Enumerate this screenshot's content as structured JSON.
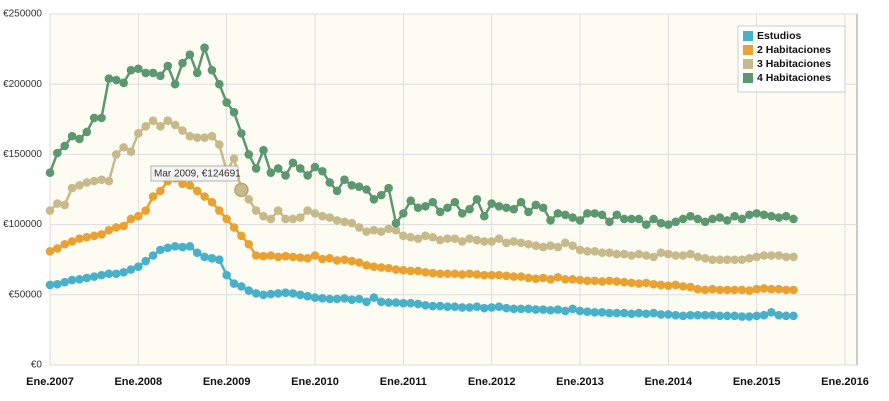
{
  "chart_data": {
    "type": "line",
    "categories": [
      "Ene.2007",
      null,
      null,
      null,
      null,
      null,
      null,
      null,
      null,
      null,
      null,
      null,
      "Ene.2008",
      null,
      null,
      null,
      null,
      null,
      null,
      null,
      null,
      null,
      null,
      null,
      "Ene.2009",
      null,
      null,
      null,
      null,
      null,
      null,
      null,
      null,
      null,
      null,
      null,
      "Ene.2010",
      null,
      null,
      null,
      null,
      null,
      null,
      null,
      null,
      null,
      null,
      null,
      "Ene.2011",
      null,
      null,
      null,
      null,
      null,
      null,
      null,
      null,
      null,
      null,
      null,
      "Ene.2012",
      null,
      null,
      null,
      null,
      null,
      null,
      null,
      null,
      null,
      null,
      null,
      "Ene.2013",
      null,
      null,
      null,
      null,
      null,
      null,
      null,
      null,
      null,
      null,
      null,
      "Ene.2014",
      null,
      null,
      null,
      null,
      null,
      null,
      null,
      null,
      null,
      null,
      null,
      "Ene.2015",
      null,
      null,
      null,
      null,
      null,
      null,
      null,
      null,
      null,
      null,
      null,
      "Ene.2016"
    ],
    "series": [
      {
        "name": "Estudios",
        "color": "#46b1c9",
        "values": [
          57000,
          57500,
          59000,
          60500,
          61000,
          62000,
          63000,
          64000,
          65000,
          65000,
          66000,
          68000,
          70000,
          74000,
          78000,
          82000,
          83500,
          84500,
          84000,
          84500,
          80000,
          77000,
          76000,
          75000,
          64000,
          58000,
          56000,
          53000,
          51000,
          50000,
          50500,
          51000,
          51500,
          51000,
          50000,
          49000,
          48000,
          47500,
          47000,
          47000,
          47500,
          46500,
          47000,
          45000,
          48000,
          45000,
          44500,
          44500,
          44000,
          44000,
          43500,
          42500,
          42000,
          42000,
          41500,
          41500,
          41000,
          41000,
          41500,
          40500,
          41000,
          41500,
          40500,
          40000,
          40000,
          40000,
          39500,
          39500,
          39000,
          39500,
          38500,
          40000,
          38500,
          38000,
          37500,
          37500,
          37000,
          37000,
          37000,
          36500,
          37000,
          36500,
          37000,
          36000,
          36000,
          35500,
          35000,
          35500,
          35500,
          35500,
          35500,
          35000,
          35000,
          35000,
          34500,
          34500,
          35000,
          35500,
          37500,
          35500,
          35000,
          35000,
          null,
          null,
          null,
          null,
          null,
          null,
          null
        ]
      },
      {
        "name": "2 Habitaciones",
        "color": "#e9a132",
        "values": [
          81000,
          83000,
          86000,
          88000,
          90000,
          91000,
          92000,
          93000,
          96000,
          98000,
          99000,
          104000,
          106000,
          110000,
          120000,
          124000,
          131000,
          133000,
          129000,
          128000,
          124000,
          120000,
          116000,
          110000,
          104000,
          98000,
          92000,
          86000,
          78000,
          77500,
          78000,
          77000,
          77500,
          77000,
          76500,
          76000,
          78000,
          75500,
          76000,
          74500,
          75000,
          74000,
          73000,
          71000,
          70000,
          69500,
          69000,
          68000,
          67500,
          67000,
          67000,
          66000,
          65500,
          65000,
          65000,
          65000,
          64500,
          65000,
          64500,
          64000,
          64000,
          64000,
          63500,
          63000,
          63000,
          62000,
          61500,
          62000,
          61000,
          62500,
          61000,
          61000,
          60500,
          60000,
          60000,
          59500,
          60000,
          59500,
          59000,
          58500,
          58000,
          58500,
          57500,
          57000,
          56500,
          57000,
          56000,
          55500,
          54000,
          53500,
          54000,
          53500,
          53500,
          53500,
          53500,
          53000,
          54000,
          54500,
          54000,
          54000,
          53500,
          53500,
          null,
          null,
          null,
          null,
          null,
          null,
          null
        ]
      },
      {
        "name": "3 Habitaciones",
        "color": "#c8b98a",
        "values": [
          110000,
          115000,
          114000,
          126000,
          128000,
          130000,
          131000,
          132000,
          131000,
          150000,
          155000,
          152000,
          165000,
          170000,
          174000,
          170000,
          174000,
          171000,
          167000,
          163000,
          162000,
          162000,
          163000,
          157000,
          138000,
          147000,
          124691,
          118000,
          110000,
          106000,
          104000,
          110000,
          104000,
          104000,
          105000,
          110000,
          108000,
          106000,
          105000,
          103000,
          102000,
          101000,
          98000,
          95000,
          96000,
          95000,
          97000,
          96000,
          92000,
          91000,
          90000,
          92000,
          91000,
          89000,
          90000,
          90000,
          88000,
          90000,
          89000,
          88000,
          88000,
          90000,
          87000,
          88000,
          87000,
          86000,
          85000,
          84000,
          85000,
          84000,
          87000,
          85000,
          82000,
          81000,
          81000,
          80000,
          80000,
          79000,
          79000,
          78000,
          79000,
          78000,
          77000,
          80000,
          79000,
          78000,
          78000,
          79000,
          77000,
          76000,
          75000,
          75000,
          75000,
          75000,
          75000,
          76000,
          77000,
          78000,
          78000,
          78000,
          77000,
          77000,
          null,
          null,
          null,
          null,
          null,
          null,
          null
        ]
      },
      {
        "name": "4 Habitaciones",
        "color": "#5b9770",
        "values": [
          137000,
          151000,
          156000,
          163000,
          161000,
          166000,
          176000,
          176000,
          204000,
          203000,
          201000,
          210000,
          211000,
          208000,
          208000,
          206000,
          213000,
          200000,
          215000,
          221000,
          208000,
          226000,
          210000,
          200000,
          187000,
          180000,
          165000,
          150000,
          140000,
          153000,
          137000,
          140000,
          135000,
          144000,
          140000,
          135000,
          141000,
          138000,
          130000,
          124000,
          132000,
          128000,
          127000,
          125000,
          118000,
          121000,
          126000,
          101000,
          108000,
          117000,
          112000,
          113000,
          116000,
          109000,
          112000,
          116000,
          108000,
          111000,
          118000,
          106000,
          115000,
          113000,
          112000,
          111000,
          116000,
          109000,
          114000,
          112000,
          103000,
          108000,
          107000,
          105000,
          103000,
          108000,
          108000,
          107000,
          102000,
          107000,
          104000,
          104000,
          104000,
          100000,
          104000,
          101000,
          100000,
          102000,
          104000,
          106000,
          104000,
          102000,
          104000,
          105000,
          103000,
          106000,
          104000,
          107000,
          108000,
          107000,
          106000,
          105000,
          106000,
          104000,
          null,
          null,
          null,
          null,
          null,
          null,
          null
        ]
      }
    ],
    "annotations": [
      {
        "text": "Mar 2009, €124691"
      }
    ],
    "ylim": [
      0,
      250000
    ],
    "yticks": [
      {
        "value": 0,
        "label": "€0"
      },
      {
        "value": 50000,
        "label": "€50000"
      },
      {
        "value": 100000,
        "label": "€100000"
      },
      {
        "value": 150000,
        "label": "€150000"
      },
      {
        "value": 200000,
        "label": "€200000"
      },
      {
        "value": 250000,
        "label": "€250000"
      }
    ],
    "grid": true,
    "legend": "top-right"
  }
}
